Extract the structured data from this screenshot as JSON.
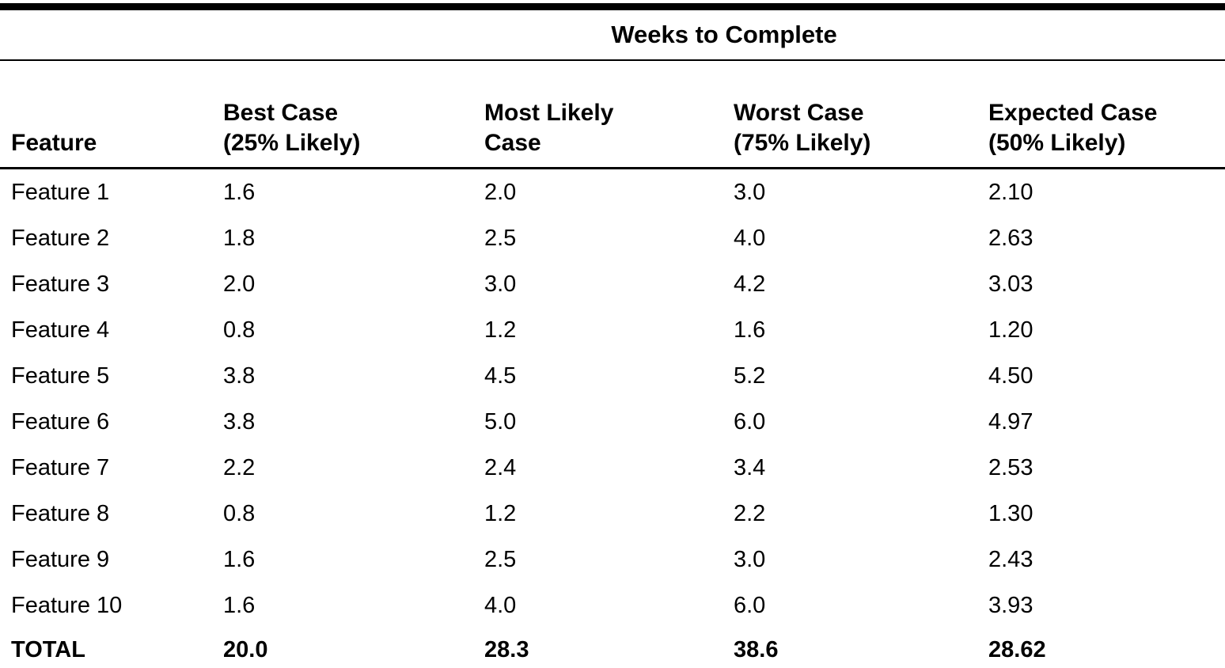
{
  "page": {
    "background_color": "#ffffff",
    "text_color": "#000000"
  },
  "table": {
    "spanner_title": "Weeks to Complete",
    "columns": [
      "Feature",
      "Best Case\n(25% Likely)",
      "Most Likely\nCase",
      "Worst Case\n(75% Likely)",
      "Expected Case\n(50% Likely)"
    ],
    "rows": [
      {
        "feature": "Feature 1",
        "best": "1.6",
        "most_likely": "2.0",
        "worst": "3.0",
        "expected": "2.10"
      },
      {
        "feature": "Feature 2",
        "best": "1.8",
        "most_likely": "2.5",
        "worst": "4.0",
        "expected": "2.63"
      },
      {
        "feature": "Feature 3",
        "best": "2.0",
        "most_likely": "3.0",
        "worst": "4.2",
        "expected": "3.03"
      },
      {
        "feature": "Feature 4",
        "best": "0.8",
        "most_likely": "1.2",
        "worst": "1.6",
        "expected": "1.20"
      },
      {
        "feature": "Feature 5",
        "best": "3.8",
        "most_likely": "4.5",
        "worst": "5.2",
        "expected": "4.50"
      },
      {
        "feature": "Feature 6",
        "best": "3.8",
        "most_likely": "5.0",
        "worst": "6.0",
        "expected": "4.97"
      },
      {
        "feature": "Feature 7",
        "best": "2.2",
        "most_likely": "2.4",
        "worst": "3.4",
        "expected": "2.53"
      },
      {
        "feature": "Feature 8",
        "best": "0.8",
        "most_likely": "1.2",
        "worst": "2.2",
        "expected": "1.30"
      },
      {
        "feature": "Feature 9",
        "best": "1.6",
        "most_likely": "2.5",
        "worst": "3.0",
        "expected": "2.43"
      },
      {
        "feature": "Feature 10",
        "best": "1.6",
        "most_likely": "4.0",
        "worst": "6.0",
        "expected": "3.93"
      }
    ],
    "total": {
      "feature": "TOTAL",
      "best": "20.0",
      "most_likely": "28.3",
      "worst": "38.6",
      "expected": "28.62"
    }
  }
}
